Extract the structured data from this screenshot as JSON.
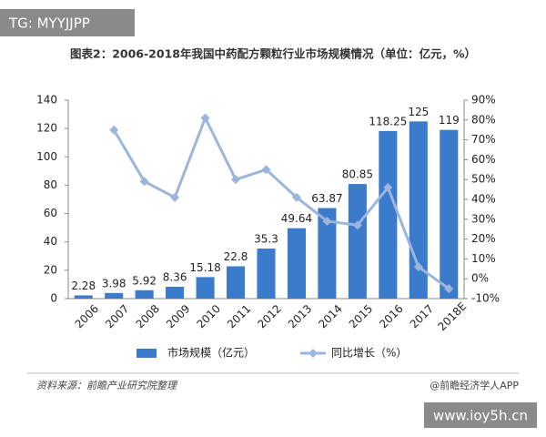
{
  "chart_data": {
    "type": "bar",
    "title": "图表2：2006-2018年我国中药配方颗粒行业市场规模情况（单位：亿元，%）",
    "categories": [
      "2006",
      "2007",
      "2008",
      "2009",
      "2010",
      "2011",
      "2012",
      "2013",
      "2014",
      "2015",
      "2016",
      "2017",
      "2018E"
    ],
    "series": [
      {
        "name": "市场规模（亿元）",
        "type": "bar",
        "color": "#3b7bcb",
        "values": [
          2.28,
          3.98,
          5.92,
          8.36,
          15.18,
          22.8,
          35.3,
          49.64,
          63.87,
          80.85,
          118.25,
          125,
          119
        ]
      },
      {
        "name": "同比增长（%）",
        "type": "line",
        "axis": "y2",
        "color": "#9bb5dc",
        "values": [
          null,
          75,
          49,
          41,
          81,
          50,
          55,
          41,
          29,
          27,
          46,
          6,
          -5
        ]
      }
    ],
    "ylim": [
      0,
      140
    ],
    "yticks": [
      0,
      20,
      40,
      60,
      80,
      100,
      120,
      140
    ],
    "y2lim": [
      -10,
      90
    ],
    "y2ticks": [
      {
        "value": -10,
        "label": "-10%"
      },
      {
        "value": 0,
        "label": "0%"
      },
      {
        "value": 10,
        "label": "10%"
      },
      {
        "value": 20,
        "label": "20%"
      },
      {
        "value": 30,
        "label": "30%"
      },
      {
        "value": 40,
        "label": "40%"
      },
      {
        "value": 50,
        "label": "50%"
      },
      {
        "value": 60,
        "label": "60%"
      },
      {
        "value": 70,
        "label": "70%"
      },
      {
        "value": 80,
        "label": "80%"
      },
      {
        "value": 90,
        "label": "90%"
      }
    ],
    "source": "资料来源：前瞻产业研究院整理",
    "credit": "@前瞻经济学人APP"
  },
  "watermarks": [
    "TG: MYYJJPP",
    "www.ioy5h.cn"
  ]
}
